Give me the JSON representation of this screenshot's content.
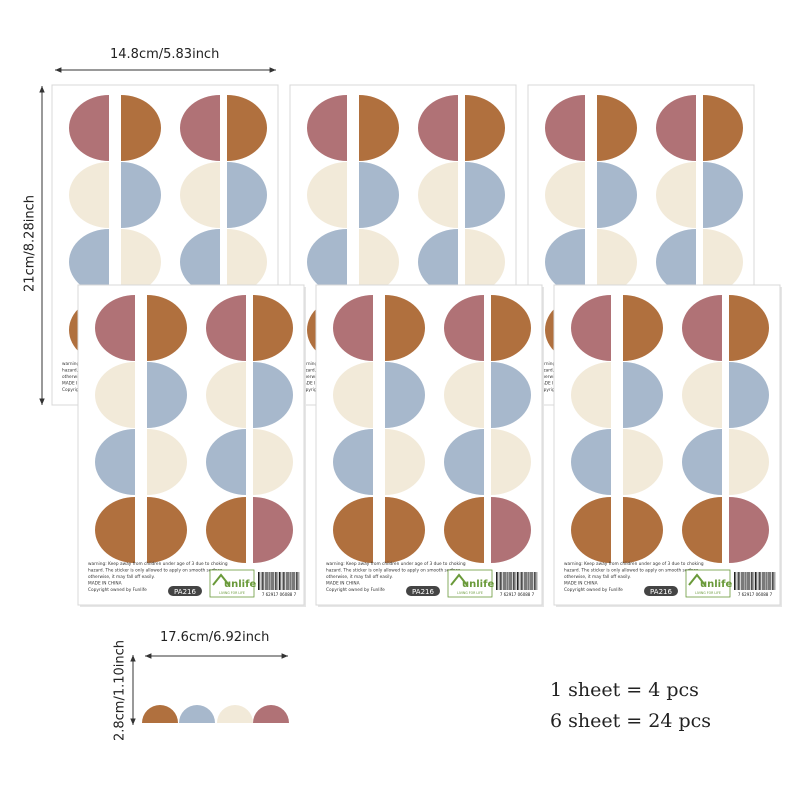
{
  "dimensions": {
    "sheet_width": "14.8cm/5.83inch",
    "sheet_height": "21cm/8.28inch",
    "set_width": "17.6cm/6.92inch",
    "set_height": "2.8cm/1.10inch"
  },
  "counts": {
    "line1": "1 sheet = 4 pcs",
    "line2": "6 sheet = 24 pcs"
  },
  "sheet": {
    "warning": [
      "warning: Keep away from children under age of 3 due to choking",
      "hazard. The sticker is only allowed to apply on smooth surface,",
      "otherwise, it may fall off easily."
    ],
    "made_in": "MADE IN CHINA",
    "copyright": "Copyright owned by Funlife",
    "code": "PA216",
    "brand": "unlife",
    "slogan": "LIVING FOR LIFE",
    "barcode": "7  62917  06088  7"
  },
  "colors": {
    "mauve": "#b07276",
    "brown": "#b0703e",
    "cream": "#f2ead9",
    "blue": "#a7b8cc",
    "brand_green": "#6a9a3a"
  },
  "rows": [
    [
      "mauve",
      "brown",
      "mauve",
      "brown"
    ],
    [
      "cream",
      "blue",
      "cream",
      "blue"
    ],
    [
      "blue",
      "cream",
      "blue",
      "cream"
    ],
    [
      "brown",
      "brown",
      "brown",
      "mauve"
    ]
  ],
  "sample": [
    "brown",
    "blue",
    "cream",
    "mauve"
  ]
}
